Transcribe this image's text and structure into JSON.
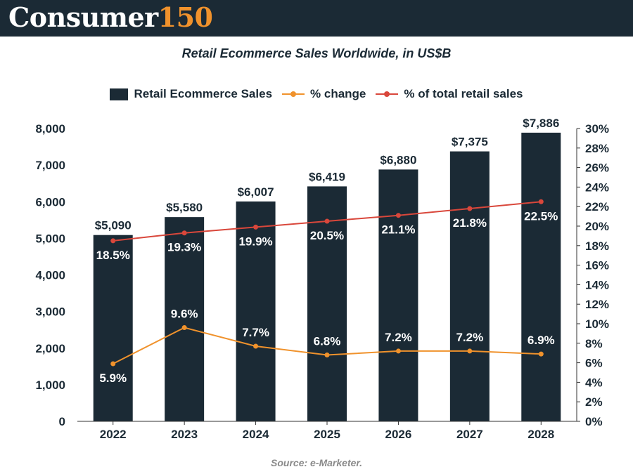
{
  "brand": {
    "word": "Consumer",
    "number": "150"
  },
  "colors": {
    "header_bg": "#1b2a35",
    "bar": "#1b2a35",
    "brand_accent": "#f0922c",
    "pct_change_line": "#f0922c",
    "pct_retail_line": "#d9473b",
    "label_dark": "#1b2a35",
    "label_light": "#ffffff",
    "source_text": "#8a8a8a"
  },
  "source": "Source: e-Marketer.",
  "chart_data": {
    "type": "bar",
    "title": "Retail Ecommerce Sales Worldwide, in US$B",
    "categories": [
      "2022",
      "2023",
      "2024",
      "2025",
      "2026",
      "2027",
      "2028"
    ],
    "series": [
      {
        "name": "Retail Ecommerce Sales",
        "type": "bar",
        "axis": "left",
        "values": [
          5090,
          5580,
          6007,
          6419,
          6880,
          7375,
          7886
        ],
        "labels": [
          "$5,090",
          "$5,580",
          "$6,007",
          "$6,419",
          "$6,880",
          "$7,375",
          "$7,886"
        ]
      },
      {
        "name": "% change",
        "type": "line",
        "axis": "right",
        "values": [
          5.9,
          9.6,
          7.7,
          6.8,
          7.2,
          7.2,
          6.9
        ],
        "labels": [
          "5.9%",
          "9.6%",
          "7.7%",
          "6.8%",
          "7.2%",
          "7.2%",
          "6.9%"
        ]
      },
      {
        "name": "% of total retail sales",
        "type": "line",
        "axis": "right",
        "values": [
          18.5,
          19.3,
          19.9,
          20.5,
          21.1,
          21.8,
          22.5
        ],
        "labels": [
          "18.5%",
          "19.3%",
          "19.9%",
          "20.5%",
          "21.1%",
          "21.8%",
          "22.5%"
        ]
      }
    ],
    "y_left": {
      "range": [
        0,
        8000
      ],
      "ticks": [
        0,
        1000,
        2000,
        3000,
        4000,
        5000,
        6000,
        7000,
        8000
      ],
      "tick_labels": [
        "0",
        "1,000",
        "2,000",
        "3,000",
        "4,000",
        "5,000",
        "6,000",
        "7,000",
        "8,000"
      ]
    },
    "y_right": {
      "range": [
        0,
        30
      ],
      "ticks": [
        0,
        2,
        4,
        6,
        8,
        10,
        12,
        14,
        16,
        18,
        20,
        22,
        24,
        26,
        28,
        30
      ],
      "tick_labels": [
        "0%",
        "2%",
        "4%",
        "6%",
        "8%",
        "10%",
        "12%",
        "14%",
        "16%",
        "18%",
        "20%",
        "22%",
        "24%",
        "26%",
        "28%",
        "30%"
      ]
    },
    "grid": false,
    "legend_position": "top-center"
  }
}
